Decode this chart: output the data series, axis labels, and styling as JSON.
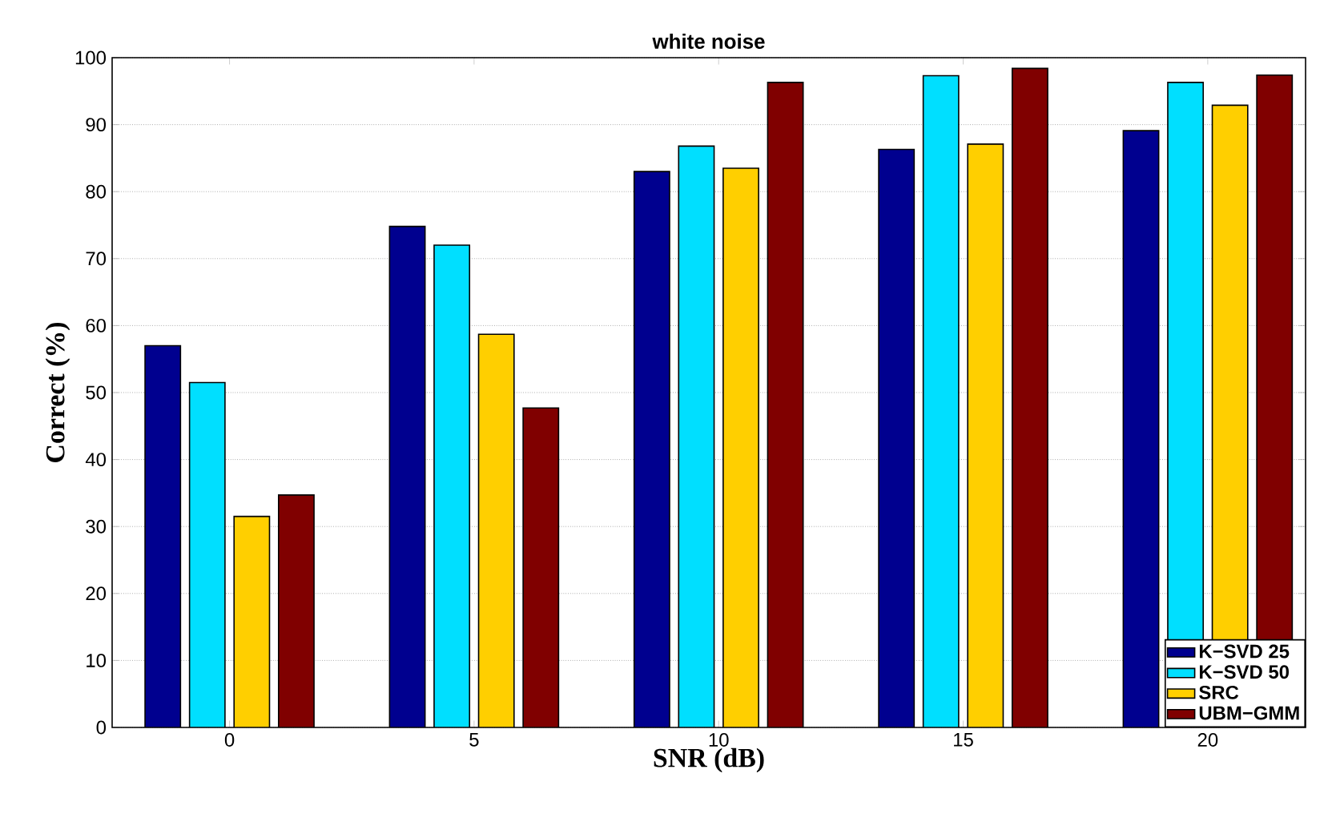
{
  "chart_data": {
    "type": "bar",
    "title": "white noise",
    "xlabel": "SNR (dB)",
    "ylabel": "Correct (%)",
    "categories": [
      "0",
      "5",
      "10",
      "15",
      "20"
    ],
    "series": [
      {
        "name": "K−SVD 25",
        "color": "#00008f",
        "values": [
          57,
          74.8,
          83,
          86.3,
          89.1
        ]
      },
      {
        "name": "K−SVD 50",
        "color": "#00dfff",
        "values": [
          51.5,
          72,
          86.8,
          97.3,
          96.3
        ]
      },
      {
        "name": "SRC",
        "color": "#ffcf00",
        "values": [
          31.5,
          58.7,
          83.5,
          87.1,
          92.9
        ]
      },
      {
        "name": "UBM−GMM",
        "color": "#800000",
        "values": [
          34.7,
          47.7,
          96.3,
          98.4,
          97.4
        ]
      }
    ],
    "ylim": [
      0,
      100
    ],
    "yticks": [
      0,
      10,
      20,
      30,
      40,
      50,
      60,
      70,
      80,
      90,
      100
    ],
    "grid": "y",
    "legend": "bottom right"
  }
}
